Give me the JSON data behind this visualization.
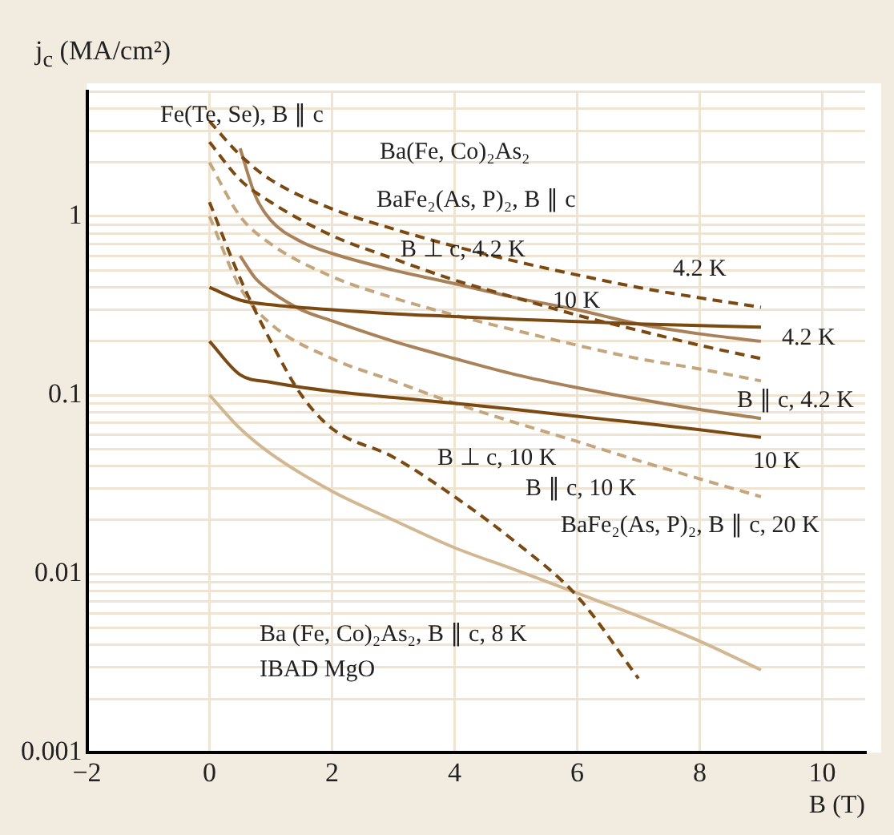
{
  "chart_data": {
    "type": "line",
    "xlabel": "B (T)",
    "ylabel": "j$_{c}$ (MA/cm²)",
    "log": "y",
    "grid": true,
    "legend": false,
    "marker": "none",
    "xlim": [
      -2,
      10.7
    ],
    "xticks": [
      -2,
      0,
      2,
      4,
      6,
      8,
      10
    ],
    "ylim": [
      0.001,
      5
    ],
    "yticks": [
      0.001,
      {
        "value": 0.002,
        "label": null
      },
      {
        "value": 0.003,
        "label": null
      },
      {
        "value": 0.004,
        "label": null
      },
      {
        "value": 0.005,
        "label": null
      },
      {
        "value": 0.006,
        "label": null
      },
      {
        "value": 0.007,
        "label": null
      },
      {
        "value": 0.008,
        "label": null
      },
      {
        "value": 0.009,
        "label": null
      },
      0.01,
      {
        "value": 0.02,
        "label": null
      },
      {
        "value": 0.03,
        "label": null
      },
      {
        "value": 0.04,
        "label": null
      },
      {
        "value": 0.05,
        "label": null
      },
      {
        "value": 0.06,
        "label": null
      },
      {
        "value": 0.07,
        "label": null
      },
      {
        "value": 0.08,
        "label": null
      },
      {
        "value": 0.09,
        "label": null
      },
      0.1,
      {
        "value": 0.2,
        "label": null
      },
      {
        "value": 0.3,
        "label": null
      },
      {
        "value": 0.4,
        "label": null
      },
      {
        "value": 0.5,
        "label": null
      },
      {
        "value": 0.6,
        "label": null
      },
      {
        "value": 0.7,
        "label": null
      },
      {
        "value": 0.8,
        "label": null
      },
      {
        "value": 0.9,
        "label": null
      },
      1,
      {
        "value": 2,
        "label": null
      },
      {
        "value": 3,
        "label": null
      },
      {
        "value": 4,
        "label": null
      },
      {
        "value": 5,
        "label": null
      }
    ],
    "series": [
      {
        "color": "#7b4a12",
        "line_style": "solid",
        "x": [
          0,
          0.5,
          1,
          2,
          3,
          4,
          5,
          6,
          7,
          8,
          9
        ],
        "values": [
          0.4,
          0.34,
          0.32,
          0.3,
          0.285,
          0.275,
          0.265,
          0.258,
          0.25,
          0.245,
          0.24
        ]
      },
      {
        "color": "#7b4a12",
        "line_style": "solid",
        "x": [
          0,
          0.5,
          1,
          2,
          3,
          4,
          5,
          6,
          7,
          8,
          9
        ],
        "values": [
          0.2,
          0.13,
          0.118,
          0.105,
          0.097,
          0.09,
          0.083,
          0.076,
          0.07,
          0.064,
          0.058
        ]
      },
      {
        "color": "#7b4a12",
        "line_style": "dashed",
        "x": [
          0,
          0.5,
          1,
          2,
          3,
          4,
          5,
          6,
          7,
          8,
          9
        ],
        "values": [
          3.4,
          2.2,
          1.6,
          1.1,
          0.85,
          0.68,
          0.56,
          0.47,
          0.4,
          0.35,
          0.31
        ]
      },
      {
        "color": "#7b4a12",
        "line_style": "dashed",
        "x": [
          0,
          0.5,
          1,
          2,
          3,
          4,
          5,
          6,
          7,
          8,
          9
        ],
        "values": [
          2.6,
          1.6,
          1.2,
          0.78,
          0.58,
          0.44,
          0.35,
          0.28,
          0.23,
          0.19,
          0.16
        ]
      },
      {
        "color": "#7b4a12",
        "line_style": "dashed",
        "x": [
          0,
          0.5,
          1,
          1.5,
          2,
          3,
          4,
          5,
          6,
          7
        ],
        "values": [
          1.2,
          0.45,
          0.2,
          0.1,
          0.065,
          0.045,
          0.027,
          0.015,
          0.0075,
          0.0026
        ]
      },
      {
        "color": "#c4a57c",
        "line_style": "dashed",
        "x": [
          0,
          0.5,
          1,
          2,
          3,
          4,
          5,
          6,
          7,
          8,
          9
        ],
        "values": [
          2.0,
          1.0,
          0.7,
          0.46,
          0.35,
          0.28,
          0.23,
          0.19,
          0.16,
          0.14,
          0.12
        ]
      },
      {
        "color": "#c4a57c",
        "line_style": "dashed",
        "x": [
          0,
          0.5,
          1,
          2,
          3,
          4,
          5,
          6,
          7,
          8,
          9
        ],
        "values": [
          1.0,
          0.4,
          0.25,
          0.16,
          0.12,
          0.09,
          0.07,
          0.055,
          0.043,
          0.034,
          0.027
        ]
      },
      {
        "color": "#a9825a",
        "line_style": "solid",
        "x": [
          0.5,
          0.75,
          1,
          1.5,
          2,
          3,
          4,
          5,
          6,
          7,
          8,
          9
        ],
        "values": [
          2.4,
          1.3,
          0.95,
          0.72,
          0.62,
          0.5,
          0.42,
          0.35,
          0.3,
          0.25,
          0.22,
          0.2
        ]
      },
      {
        "color": "#a9825a",
        "line_style": "solid",
        "x": [
          0.5,
          0.75,
          1,
          1.5,
          2,
          3,
          4,
          5,
          6,
          7,
          8,
          9
        ],
        "values": [
          0.6,
          0.45,
          0.38,
          0.3,
          0.26,
          0.2,
          0.16,
          0.13,
          0.11,
          0.095,
          0.083,
          0.074
        ]
      },
      {
        "color": "#d2b892",
        "line_style": "solid",
        "x": [
          0,
          0.5,
          1,
          2,
          3,
          4,
          5,
          6,
          7,
          8,
          9
        ],
        "values": [
          0.1,
          0.065,
          0.047,
          0.029,
          0.02,
          0.014,
          0.0105,
          0.0078,
          0.0058,
          0.0042,
          0.0029
        ]
      }
    ],
    "annotations": [
      "Fe(Te, Se), B ∥ c",
      "Ba(Fe, Co)₂As₂",
      "BaFe₂(As, P)₂, B ∥ c",
      "B ⊥ c, 4.2 K",
      "4.2 K",
      "10 K",
      "4.2 K",
      "B ∥ c, 4.2 K",
      "10 K",
      "B ⊥ c, 10 K",
      "B ∥ c, 10 K",
      "BaFe₂(As, P)₂, B ∥ c, 20 K",
      "Ba (Fe, Co)₂As₂, B ∥ c, 8 K",
      "IBAD MgO"
    ]
  }
}
